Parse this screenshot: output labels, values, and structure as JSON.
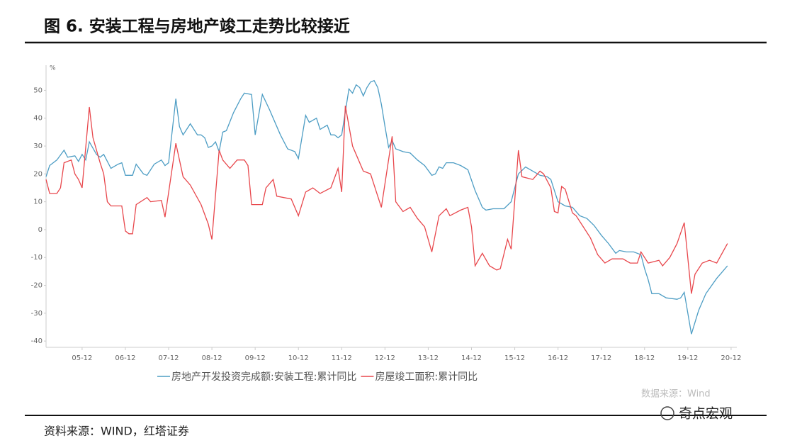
{
  "chart_data": {
    "type": "line",
    "title": "图 6. 安装工程与房地产竣工走势比较接近",
    "ylabel": "%",
    "source": "资料来源：WIND，红塔证券",
    "annotations": [
      "数据来源：Wind",
      "奇点宏观"
    ],
    "xlim": [
      "05-02",
      "21-01"
    ],
    "xticks": [
      "05-12",
      "06-12",
      "07-12",
      "08-12",
      "09-12",
      "10-12",
      "11-12",
      "12-12",
      "13-12",
      "14-12",
      "15-12",
      "16-12",
      "17-12",
      "18-12",
      "19-12",
      "20-12"
    ],
    "ylim": [
      -42,
      58
    ],
    "yticks": [
      50,
      40,
      30,
      20,
      10,
      0,
      -10,
      -20,
      -30,
      -40
    ],
    "series": [
      {
        "name": "房地产开发投资完成额:安装工程:累计同比",
        "color": "#4d9dc4",
        "x": [
          "05-02",
          "05-03",
          "05-05",
          "05-07",
          "05-08",
          "05-10",
          "05-11",
          "05-12",
          "06-01",
          "06-02",
          "06-04",
          "06-05",
          "06-06",
          "06-08",
          "06-10",
          "06-11",
          "06-12",
          "07-02",
          "07-03",
          "07-05",
          "07-06",
          "07-08",
          "07-10",
          "07-11",
          "07-12",
          "08-02",
          "08-03",
          "08-04",
          "08-05",
          "08-06",
          "08-08",
          "08-09",
          "08-10",
          "08-11",
          "08-12",
          "09-01",
          "09-02",
          "09-03",
          "09-04",
          "09-06",
          "09-08",
          "09-09",
          "09-11",
          "09-12",
          "10-02",
          "10-04",
          "10-07",
          "10-09",
          "10-11",
          "10-12",
          "11-02",
          "11-03",
          "11-05",
          "11-06",
          "11-08",
          "11-09",
          "11-10",
          "11-11",
          "11-12",
          "12-02",
          "12-03",
          "12-04",
          "12-05",
          "12-06",
          "12-07",
          "12-08",
          "12-09",
          "12-10",
          "12-11",
          "12-12",
          "13-01",
          "13-02",
          "13-03",
          "13-05",
          "13-07",
          "13-09",
          "13-11",
          "14-01",
          "14-02",
          "14-03",
          "14-04",
          "14-05",
          "14-07",
          "14-09",
          "14-11",
          "15-01",
          "15-03",
          "15-04",
          "15-06",
          "15-09",
          "15-11",
          "16-01",
          "16-03",
          "16-05",
          "16-07",
          "16-09",
          "16-10",
          "16-12",
          "17-02",
          "17-04",
          "17-06",
          "17-08",
          "17-10",
          "17-12",
          "18-02",
          "18-04",
          "18-05",
          "18-07",
          "18-09",
          "18-11",
          "18-12",
          "19-01",
          "19-02",
          "19-04",
          "19-06",
          "19-09",
          "19-10",
          "19-11",
          "20-01",
          "20-03",
          "20-05",
          "20-08",
          "20-11"
        ],
        "values": [
          19,
          23,
          25,
          28.5,
          26,
          26.5,
          24.5,
          27,
          25,
          31.5,
          27,
          26,
          27,
          22,
          23.5,
          24,
          19.5,
          19.5,
          23.5,
          20,
          19.5,
          23.5,
          25,
          23,
          24,
          47,
          37,
          34,
          36,
          38,
          34,
          34,
          33,
          29.5,
          30,
          31.5,
          28,
          35,
          35.5,
          42,
          47,
          49,
          48.5,
          34,
          48.5,
          43,
          34,
          29,
          28,
          25.5,
          41,
          38.5,
          40,
          36,
          37.5,
          34,
          34,
          33,
          34,
          50.5,
          49,
          52,
          51,
          48,
          51,
          53,
          53.5,
          51,
          45,
          37,
          29.5,
          32,
          29,
          28,
          27.5,
          25,
          23,
          19.5,
          20,
          22.5,
          22,
          24,
          24,
          23,
          21.5,
          14,
          8,
          7,
          7.5,
          7.5,
          10,
          20,
          22.5,
          21,
          19.5,
          19,
          18,
          10,
          8.5,
          8,
          5,
          4,
          1.5,
          -2,
          -5,
          -8.5,
          -7.5,
          -8,
          -8,
          -9,
          -14,
          -18,
          -23,
          -23,
          -24.5,
          -25,
          -24.5,
          -22.5,
          -37.5,
          -29,
          -23,
          -17.5,
          -13
        ]
      },
      {
        "name": "房屋竣工面积:累计同比",
        "color": "#e8474c",
        "x": [
          "05-02",
          "05-03",
          "05-05",
          "05-06",
          "05-07",
          "05-09",
          "05-10",
          "05-11",
          "05-12",
          "06-02",
          "06-03",
          "06-05",
          "06-06",
          "06-07",
          "06-08",
          "06-11",
          "06-12",
          "07-01",
          "07-02",
          "07-03",
          "07-06",
          "07-07",
          "07-10",
          "07-11",
          "08-02",
          "08-04",
          "08-06",
          "08-09",
          "08-11",
          "08-12",
          "09-02",
          "09-03",
          "09-05",
          "09-07",
          "09-09",
          "09-10",
          "09-11",
          "10-02",
          "10-03",
          "10-05",
          "10-06",
          "10-10",
          "10-12",
          "11-02",
          "11-04",
          "11-06",
          "11-09",
          "11-11",
          "11-12",
          "12-01",
          "12-03",
          "12-06",
          "12-08",
          "12-10",
          "12-11",
          "13-02",
          "13-03",
          "13-05",
          "13-07",
          "13-09",
          "13-11",
          "14-01",
          "14-03",
          "14-05",
          "14-06",
          "14-09",
          "14-11",
          "14-12",
          "15-01",
          "15-03",
          "15-05",
          "15-07",
          "15-08",
          "15-10",
          "15-11",
          "16-01",
          "16-02",
          "16-05",
          "16-07",
          "16-08",
          "16-10",
          "16-11",
          "16-12",
          "17-01",
          "17-02",
          "17-04",
          "17-05",
          "17-07",
          "17-09",
          "17-11",
          "18-01",
          "18-03",
          "18-06",
          "18-08",
          "18-10",
          "18-11",
          "19-01",
          "19-04",
          "19-05",
          "19-07",
          "19-09",
          "19-11",
          "20-01",
          "20-02",
          "20-04",
          "20-06",
          "20-08",
          "20-11"
        ],
        "values": [
          18,
          13,
          13,
          15,
          24,
          25,
          20,
          18,
          15,
          44,
          33,
          24,
          20,
          10,
          8.5,
          8.5,
          -0.5,
          -1.5,
          -1.5,
          9,
          11.5,
          10,
          10.5,
          4.5,
          31,
          19,
          16,
          9,
          2,
          -3.5,
          28.5,
          25,
          22,
          25,
          25,
          23,
          9,
          9,
          15,
          18,
          12,
          11,
          5,
          13.5,
          15,
          13,
          15,
          22,
          13.5,
          44.5,
          30,
          21,
          20,
          12,
          8,
          33.5,
          10,
          6.5,
          8,
          4,
          1,
          -8,
          5,
          7.5,
          5,
          7,
          8,
          1,
          -13,
          -8.5,
          -13,
          -14.5,
          -14,
          -3.5,
          -7,
          28.5,
          19,
          18,
          21,
          20,
          15,
          6.5,
          6,
          15.5,
          14.5,
          6,
          5,
          1,
          -3,
          -9,
          -12,
          -10.5,
          -10.5,
          -12,
          -12,
          -8,
          -12,
          -11,
          -13,
          -10,
          -5,
          2.5,
          -23,
          -16,
          -12,
          -11,
          -12,
          -5
        ]
      }
    ]
  }
}
